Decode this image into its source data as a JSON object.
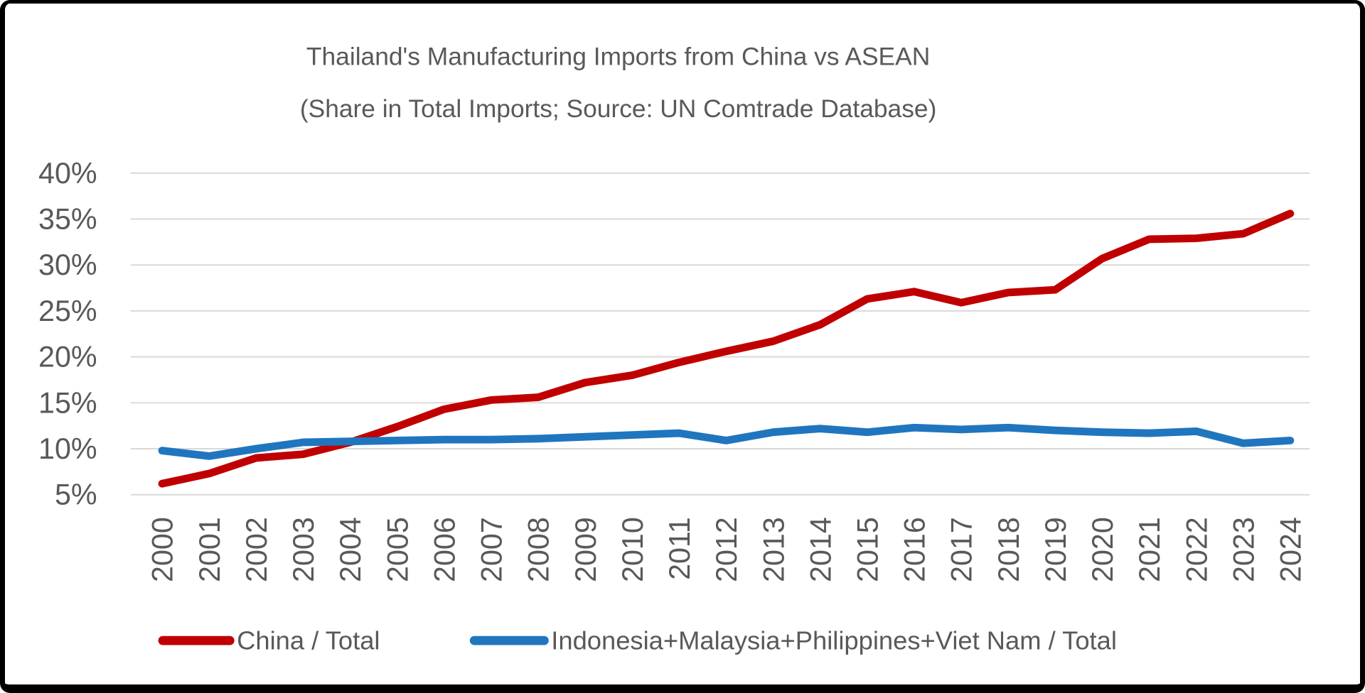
{
  "frame": {
    "background": "#FFFFFF",
    "border_color": "#000000"
  },
  "chart_data": {
    "type": "line",
    "title": "Thailand's Manufacturing Imports from China vs ASEAN",
    "subtitle": "(Share in Total Imports; Source: UN Comtrade Database)",
    "categories": [
      "2000",
      "2001",
      "2002",
      "2003",
      "2004",
      "2005",
      "2006",
      "2007",
      "2008",
      "2009",
      "2010",
      "2011",
      "2012",
      "2013",
      "2014",
      "2015",
      "2016",
      "2017",
      "2018",
      "2019",
      "2020",
      "2021",
      "2022",
      "2023",
      "2024"
    ],
    "series": [
      {
        "name": "China / Total",
        "color": "#C00000",
        "values": [
          6.2,
          7.3,
          9.0,
          9.4,
          10.7,
          12.4,
          14.3,
          15.3,
          15.6,
          17.2,
          18.0,
          19.4,
          20.6,
          21.7,
          23.5,
          26.3,
          27.1,
          25.9,
          27.0,
          27.3,
          30.7,
          32.8,
          32.9,
          33.4,
          35.6
        ]
      },
      {
        "name": "Indonesia+Malaysia+Philippines+Viet Nam / Total",
        "color": "#1F76BE",
        "values": [
          9.8,
          9.2,
          10.0,
          10.7,
          10.8,
          10.9,
          11.0,
          11.0,
          11.1,
          11.3,
          11.5,
          11.7,
          10.9,
          11.8,
          12.2,
          11.8,
          12.3,
          12.1,
          12.3,
          12.0,
          11.8,
          11.7,
          11.9,
          10.6,
          10.9
        ]
      }
    ],
    "ylim": [
      5,
      40
    ],
    "ytick_step": 5,
    "ytick_suffix": "%",
    "ytick_labels": [
      "5%",
      "10%",
      "15%",
      "20%",
      "25%",
      "30%",
      "35%",
      "40%"
    ],
    "grid": true,
    "gridline_color": "#D9D9D9",
    "text_color": "#595959",
    "legend_position": "bottom",
    "x_label_rotation": -90
  }
}
